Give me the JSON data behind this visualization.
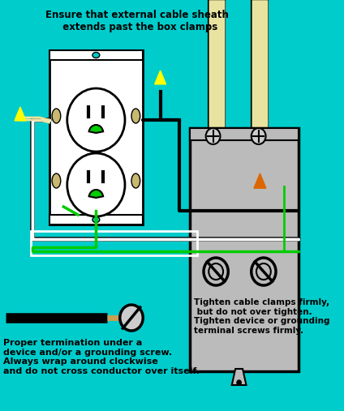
{
  "bg_color": "#00CCCC",
  "title_text": "Ensure that external cable sheath\n  extends past the box clamps",
  "bottom_text": "Proper termination under a\ndevice and/or a grounding screw.\nAlways wrap around clockwise\nand do not cross conductor over itself.",
  "right_box_text": "Tighten cable clamps firmly,\n but do not over tighten.\nTighten device or grounding\nterminal screws firmly.",
  "outlet_color": "white",
  "box_color": "#BBBBBB",
  "wire_black": "#000000",
  "wire_cream": "#E8E4A0",
  "wire_green": "#00CC00",
  "wire_white_ins": "#DDDDDD",
  "screw_orange": "#DD6600",
  "yellow": "#FFFF00",
  "fig_w": 4.24,
  "fig_h": 5.07,
  "dpi": 100
}
